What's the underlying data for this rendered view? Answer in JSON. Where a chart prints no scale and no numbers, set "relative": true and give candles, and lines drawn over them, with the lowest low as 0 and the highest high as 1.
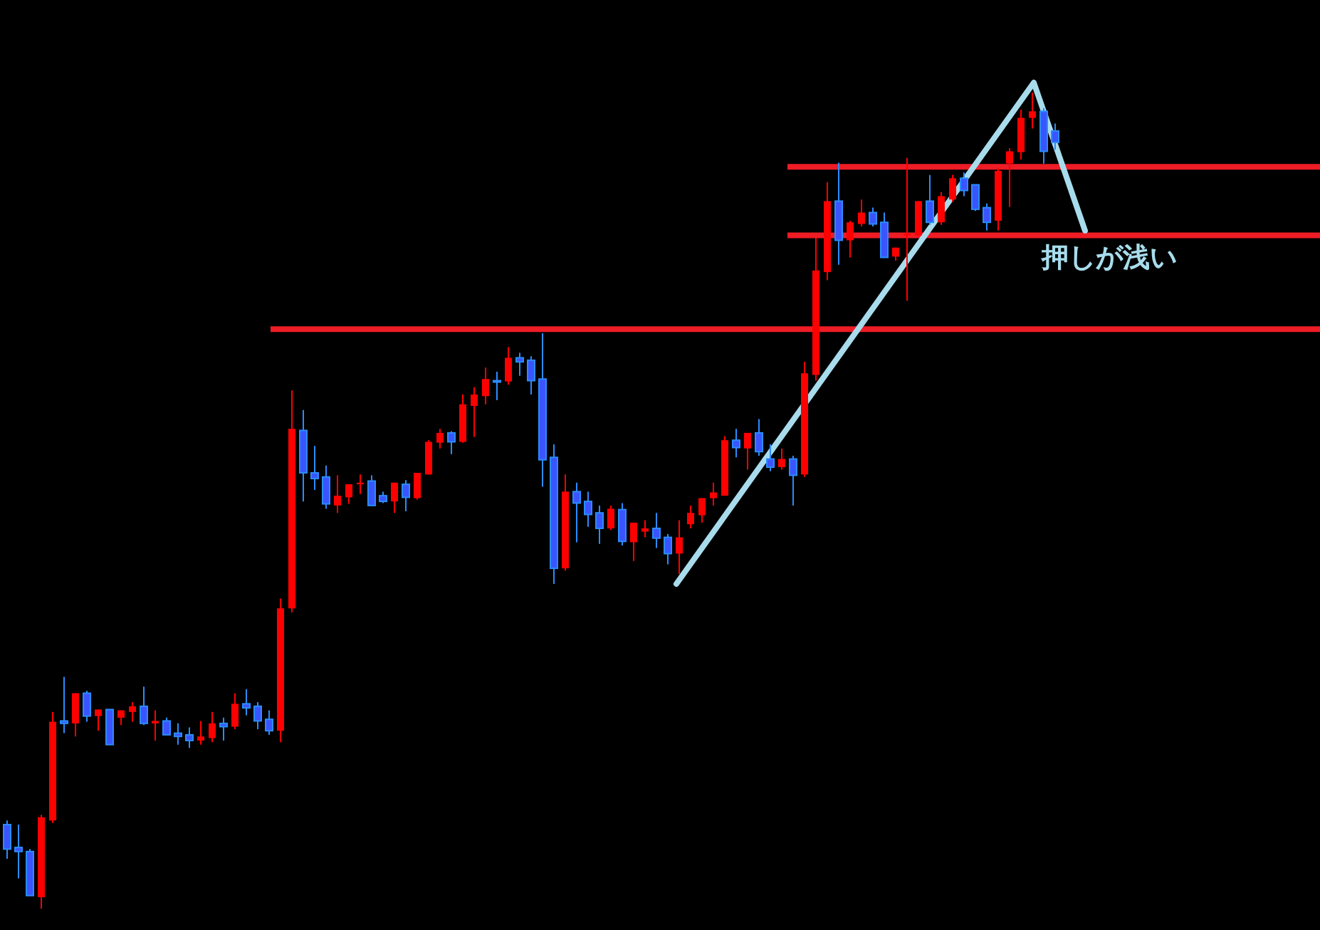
{
  "chart_data": {
    "type": "candlestick",
    "relative": true,
    "categories": [
      null,
      null,
      null,
      null,
      null,
      null,
      null,
      null,
      null,
      null,
      null,
      null,
      null,
      null,
      null,
      null,
      null,
      null,
      null,
      null,
      null,
      null,
      null,
      null,
      null,
      null,
      null,
      null,
      null,
      null,
      null,
      null,
      null,
      null,
      null,
      null,
      null,
      null,
      null,
      null,
      null,
      null,
      null,
      null,
      null,
      null,
      null,
      null,
      null,
      null,
      null,
      null,
      null,
      null,
      null,
      null,
      null,
      null,
      null,
      null,
      null,
      null,
      null,
      null,
      null,
      null,
      null,
      null,
      null,
      null,
      null,
      null,
      null,
      null,
      null,
      null,
      null,
      null,
      null,
      null,
      null,
      null,
      null,
      null,
      null,
      null,
      null,
      null,
      null,
      null,
      null,
      null,
      null
    ],
    "ohlc": [
      [
        0.103,
        0.108,
        0.061,
        0.073
      ],
      [
        0.075,
        0.103,
        0.037,
        0.07
      ],
      [
        0.07,
        0.073,
        0.016,
        0.016
      ],
      [
        0.014,
        0.115,
        0,
        0.112
      ],
      [
        0.108,
        0.241,
        0.105,
        0.229
      ],
      [
        0.23,
        0.284,
        0.215,
        0.227
      ],
      [
        0.227,
        0.264,
        0.211,
        0.264
      ],
      [
        0.264,
        0.267,
        0.229,
        0.236
      ],
      [
        0.236,
        0.244,
        0.218,
        0.244
      ],
      [
        0.244,
        0.244,
        0.201,
        0.201
      ],
      [
        0.234,
        0.243,
        0.225,
        0.243
      ],
      [
        0.241,
        0.253,
        0.229,
        0.248
      ],
      [
        0.248,
        0.272,
        0.225,
        0.227
      ],
      [
        0.227,
        0.243,
        0.206,
        0.23
      ],
      [
        0.23,
        0.234,
        0.213,
        0.213
      ],
      [
        0.215,
        0.227,
        0.201,
        0.211
      ],
      [
        0.213,
        0.222,
        0.197,
        0.206
      ],
      [
        0.206,
        0.23,
        0.201,
        0.211
      ],
      [
        0.209,
        0.241,
        0.204,
        0.227
      ],
      [
        0.227,
        0.234,
        0.206,
        0.223
      ],
      [
        0.223,
        0.264,
        0.22,
        0.251
      ],
      [
        0.251,
        0.269,
        0.237,
        0.246
      ],
      [
        0.248,
        0.253,
        0.22,
        0.23
      ],
      [
        0.232,
        0.243,
        0.213,
        0.218
      ],
      [
        0.218,
        0.38,
        0.204,
        0.368
      ],
      [
        0.368,
        0.635,
        0.363,
        0.588
      ],
      [
        0.586,
        0.611,
        0.499,
        0.534
      ],
      [
        0.534,
        0.567,
        0.513,
        0.527
      ],
      [
        0.529,
        0.543,
        0.49,
        0.496
      ],
      [
        0.494,
        0.531,
        0.485,
        0.506
      ],
      [
        0.504,
        0.52,
        0.496,
        0.52
      ],
      [
        0.52,
        0.532,
        0.508,
        0.522
      ],
      [
        0.524,
        0.531,
        0.494,
        0.494
      ],
      [
        0.506,
        0.511,
        0.497,
        0.499
      ],
      [
        0.499,
        0.522,
        0.485,
        0.522
      ],
      [
        0.52,
        0.525,
        0.487,
        0.504
      ],
      [
        0.503,
        0.534,
        0.501,
        0.534
      ],
      [
        0.532,
        0.574,
        0.532,
        0.572
      ],
      [
        0.571,
        0.588,
        0.564,
        0.583
      ],
      [
        0.583,
        0.585,
        0.557,
        0.572
      ],
      [
        0.572,
        0.63,
        0.571,
        0.618
      ],
      [
        0.616,
        0.639,
        0.578,
        0.63
      ],
      [
        0.628,
        0.663,
        0.618,
        0.649
      ],
      [
        0.647,
        0.658,
        0.623,
        0.646
      ],
      [
        0.646,
        0.688,
        0.642,
        0.675
      ],
      [
        0.675,
        0.681,
        0.653,
        0.67
      ],
      [
        0.672,
        0.677,
        0.63,
        0.647
      ],
      [
        0.649,
        0.705,
        0.517,
        0.55
      ],
      [
        0.553,
        0.569,
        0.398,
        0.417
      ],
      [
        0.417,
        0.532,
        0.414,
        0.511
      ],
      [
        0.511,
        0.522,
        0.449,
        0.497
      ],
      [
        0.499,
        0.511,
        0.468,
        0.483
      ],
      [
        0.485,
        0.494,
        0.447,
        0.466
      ],
      [
        0.466,
        0.494,
        0.464,
        0.49
      ],
      [
        0.489,
        0.497,
        0.445,
        0.45
      ],
      [
        0.449,
        0.473,
        0.426,
        0.473
      ],
      [
        0.462,
        0.476,
        0.455,
        0.466
      ],
      [
        0.466,
        0.485,
        0.442,
        0.454
      ],
      [
        0.455,
        0.459,
        0.422,
        0.435
      ],
      [
        0.435,
        0.476,
        0.41,
        0.455
      ],
      [
        0.471,
        0.494,
        0.466,
        0.485
      ],
      [
        0.482,
        0.503,
        0.473,
        0.503
      ],
      [
        0.503,
        0.522,
        0.494,
        0.51
      ],
      [
        0.506,
        0.579,
        0.506,
        0.574
      ],
      [
        0.574,
        0.588,
        0.553,
        0.565
      ],
      [
        0.564,
        0.583,
        0.538,
        0.583
      ],
      [
        0.583,
        0.6,
        0.555,
        0.56
      ],
      [
        0.551,
        0.569,
        0.536,
        0.541
      ],
      [
        0.541,
        0.564,
        0.538,
        0.551
      ],
      [
        0.551,
        0.555,
        0.494,
        0.531
      ],
      [
        0.532,
        0.67,
        0.529,
        0.656
      ],
      [
        0.654,
        0.822,
        0.647,
        0.782
      ],
      [
        0.78,
        0.89,
        0.77,
        0.867
      ],
      [
        0.867,
        0.914,
        0.789,
        0.819
      ],
      [
        0.819,
        0.843,
        0.798,
        0.841
      ],
      [
        0.839,
        0.869,
        0.836,
        0.853
      ],
      [
        0.853,
        0.859,
        0.836,
        0.839
      ],
      [
        0.841,
        0.853,
        0.798,
        0.798
      ],
      [
        0.799,
        0.81,
        0.794,
        0.81
      ],
      [
        0.825,
        0.92,
        0.745,
        0.827
      ],
      [
        0.825,
        0.867,
        0.824,
        0.867
      ],
      [
        0.867,
        0.899,
        0.838,
        0.841
      ],
      [
        0.841,
        0.878,
        0.838,
        0.873
      ],
      [
        0.869,
        0.899,
        0.866,
        0.895
      ],
      [
        0.895,
        0.902,
        0.873,
        0.88
      ],
      [
        0.887,
        0.887,
        0.855,
        0.857
      ],
      [
        0.859,
        0.864,
        0.831,
        0.841
      ],
      [
        0.843,
        0.908,
        0.831,
        0.904
      ],
      [
        0.913,
        0.932,
        0.86,
        0.928
      ],
      [
        0.927,
        0.979,
        0.918,
        0.969
      ],
      [
        0.969,
        1,
        0.956,
        0.977
      ],
      [
        0.977,
        0.981,
        0.913,
        0.928
      ],
      [
        0.953,
        0.962,
        0.93,
        0.939
      ]
    ],
    "ref_lines": [
      {
        "axis": "y",
        "value": 0.909,
        "color": "#ee1c25"
      },
      {
        "axis": "y",
        "value": 0.825,
        "color": "#ee1c25"
      },
      {
        "axis": "y",
        "value": 0.71,
        "color": "#ee1c25"
      }
    ],
    "annotations": [
      "押しが浅い"
    ]
  }
}
